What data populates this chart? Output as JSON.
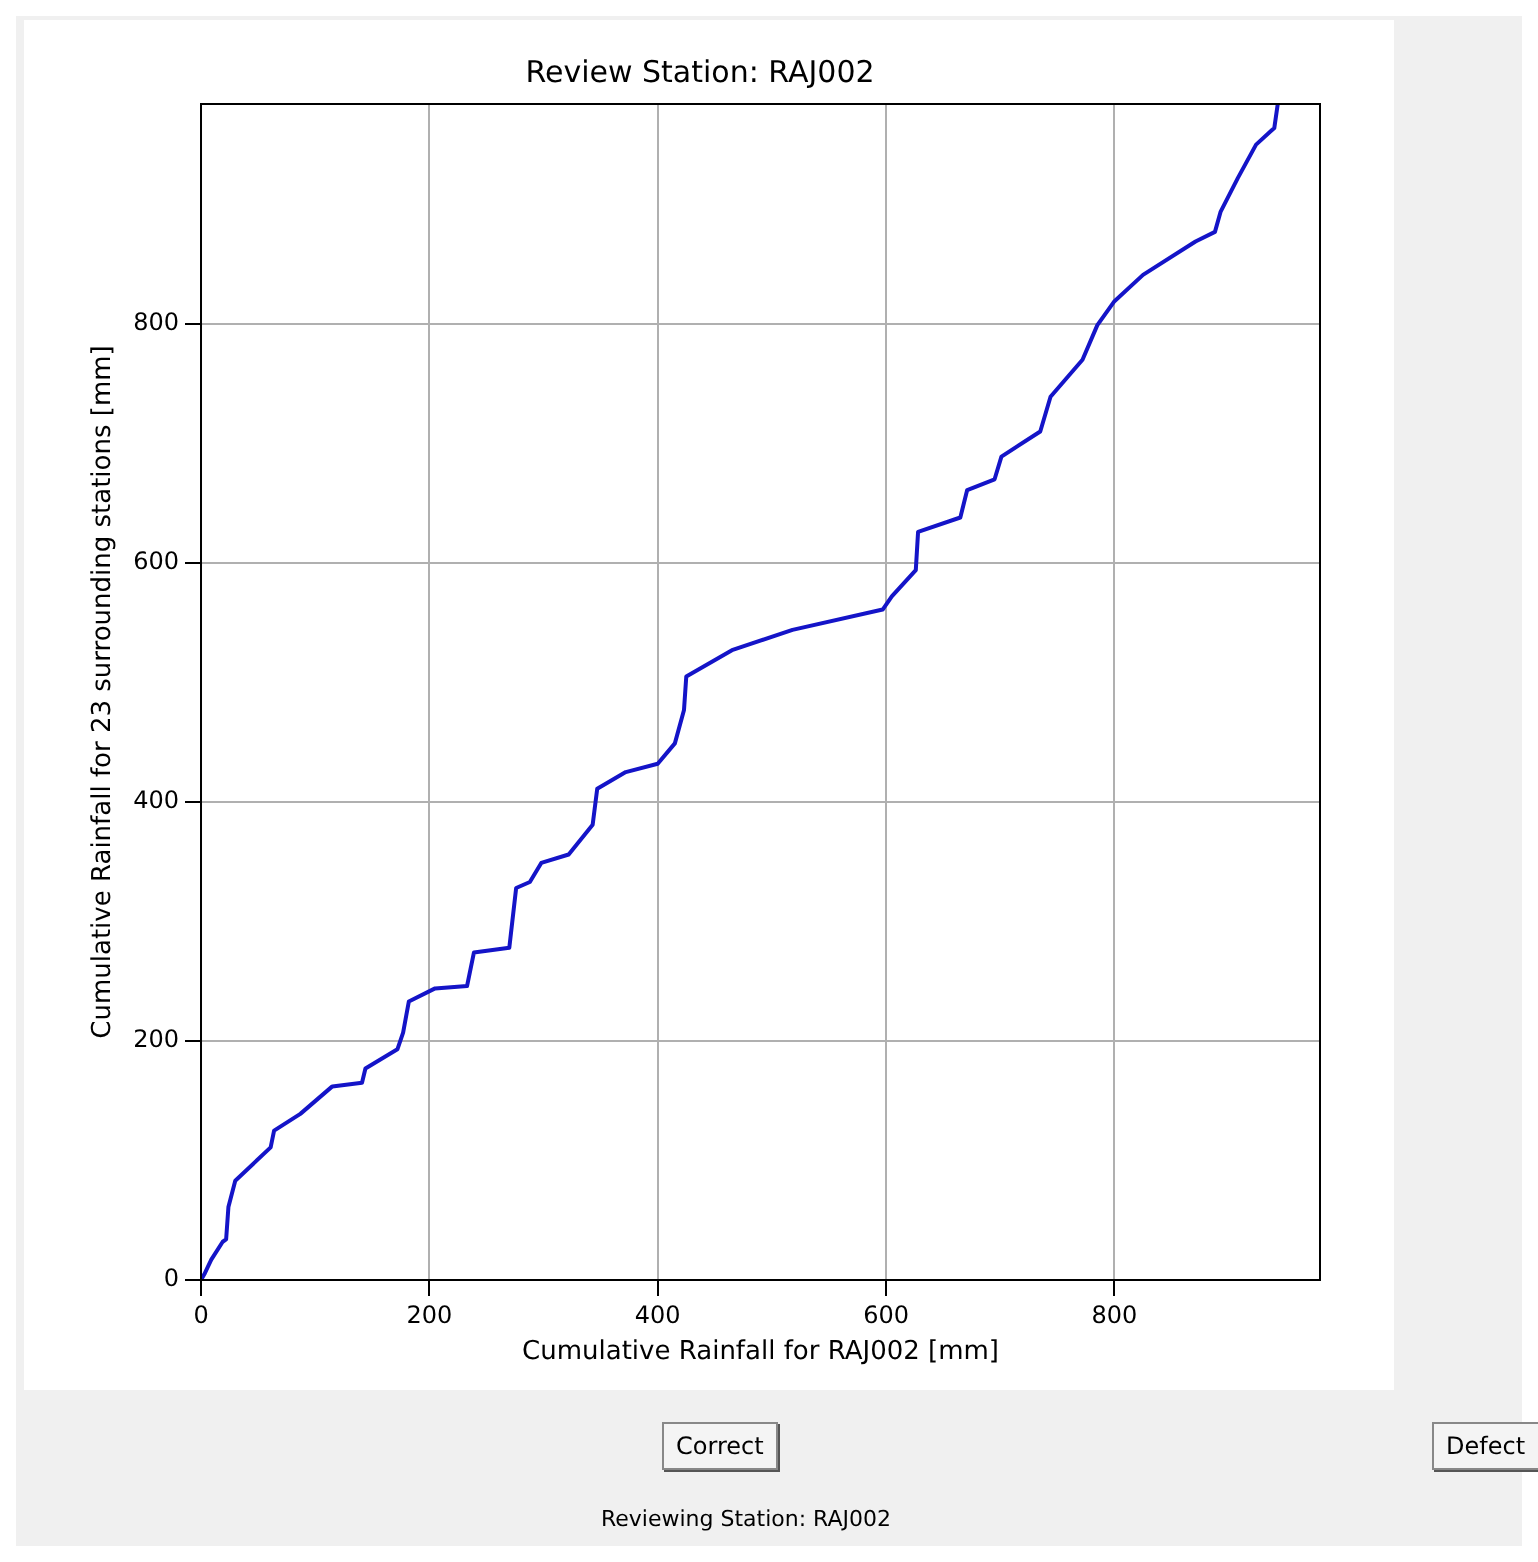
{
  "chart_data": {
    "type": "line",
    "title": "Review Station: RAJ002",
    "xlabel": "Cumulative Rainfall for RAJ002 [mm]",
    "ylabel": "Cumulative Rainfall for 23 surrounding stations [mm]",
    "x": [
      0,
      3,
      9,
      19,
      22,
      24,
      30,
      61,
      64,
      87,
      115,
      141,
      144,
      172,
      177,
      182,
      205,
      233,
      239,
      270,
      276,
      288,
      298,
      322,
      343,
      347,
      372,
      400,
      415,
      423,
      425,
      465,
      518,
      597,
      605,
      626,
      628,
      665,
      671,
      695,
      701,
      735,
      744,
      772,
      785,
      800,
      825,
      871,
      888,
      893,
      908,
      924,
      940,
      943
    ],
    "series": [
      {
        "color": "#1414c8",
        "values": [
          0,
          5,
          17,
          32,
          34,
          61,
          83,
          111,
          125,
          139,
          162,
          165,
          177,
          193,
          207,
          233,
          244,
          246,
          274,
          278,
          328,
          333,
          349,
          356,
          381,
          411,
          425,
          432,
          449,
          477,
          505,
          527,
          544,
          561,
          572,
          594,
          626,
          638,
          661,
          670,
          689,
          710,
          739,
          770,
          799,
          819,
          841,
          869,
          877,
          894,
          922,
          950,
          964,
          984
        ]
      }
    ],
    "xlim": [
      0,
      980
    ],
    "ylim": [
      0,
      984
    ],
    "xticks": [
      0,
      200,
      400,
      600,
      800
    ],
    "yticks": [
      0,
      200,
      400,
      600,
      800
    ],
    "grid": true,
    "legend": false,
    "marker": "none",
    "line_style": "solid",
    "annotations": [
      "Correct",
      "Defect",
      "Reviewing Station: RAJ002"
    ]
  }
}
